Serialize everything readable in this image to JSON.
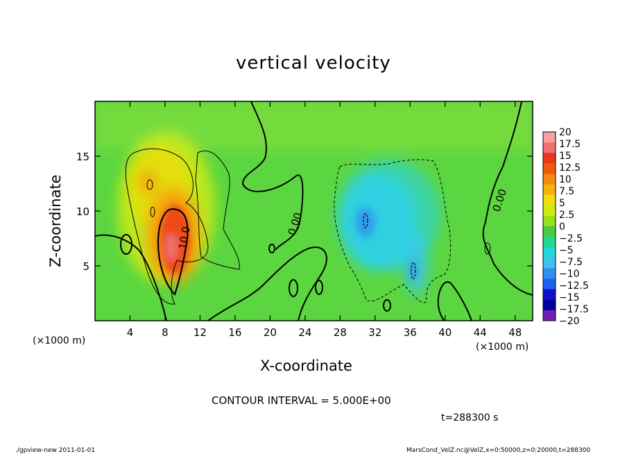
{
  "chart_data": {
    "type": "heatmap",
    "title": "vertical velocity",
    "xlabel": "X-coordinate",
    "ylabel": "Z-coordinate",
    "x_unit_note": "(×1000 m)",
    "y_unit_note": "(×1000 m)",
    "x_range": [
      0,
      50
    ],
    "y_range": [
      0,
      20
    ],
    "x_ticks": [
      4,
      8,
      12,
      16,
      20,
      24,
      28,
      32,
      36,
      40,
      44,
      48
    ],
    "y_ticks": [
      5,
      10,
      15
    ],
    "colorbar": {
      "labels": [
        "20",
        "17.5",
        "15",
        "12.5",
        "10",
        "7.5",
        "5",
        "2.5",
        "0",
        "−2.5",
        "−5",
        "−7.5",
        "−10",
        "−12.5",
        "−15",
        "−17.5",
        "−20"
      ],
      "colors": [
        "#f9a0a0",
        "#f07070",
        "#e83820",
        "#f05a10",
        "#f58a10",
        "#f5b30f",
        "#f0dc10",
        "#cdeb10",
        "#98e01e",
        "#4ccc40",
        "#20d890",
        "#20d8d8",
        "#40c0f0",
        "#3090f0",
        "#2060f0",
        "#1010d0",
        "#0000a0",
        "#7020b0"
      ]
    },
    "contour_labels": [
      "10.0",
      "0.00",
      "0.00"
    ],
    "contour_interval": "CONTOUR INTERVAL = 5.000E+00",
    "time": "t=288300 s",
    "max_value_approx": 17.5,
    "min_value_approx": -10
  },
  "footer": {
    "left": "./gpview-new  2011-01-01",
    "right": "MarsCond_VelZ.nc@VelZ,x=0:50000,z=0:20000,t=288300"
  }
}
